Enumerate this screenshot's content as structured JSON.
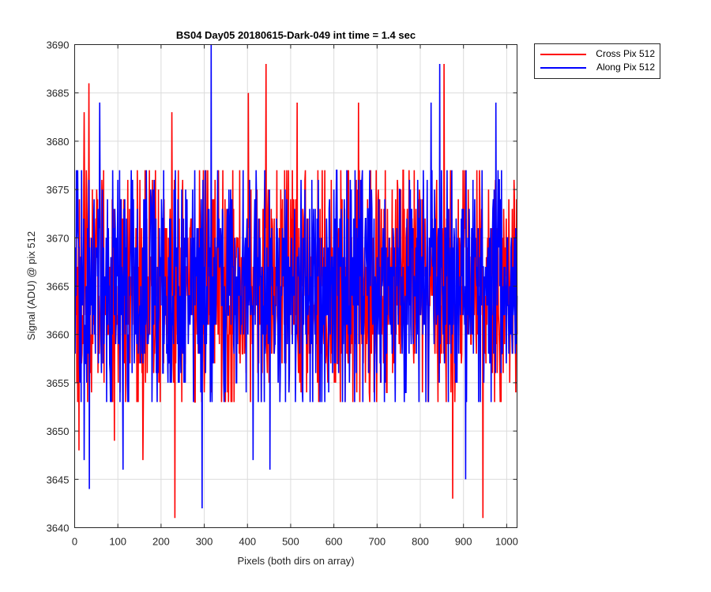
{
  "chart_data": {
    "type": "line",
    "title": "BS04 Day05 20180615-Dark-049 int time = 1.4 sec",
    "xlabel": "Pixels (both dirs on array)",
    "ylabel": "Signal (ADU) @ pix 512",
    "xlim": [
      0,
      1024
    ],
    "ylim": [
      3640,
      3690
    ],
    "xticks": [
      0,
      100,
      200,
      300,
      400,
      500,
      600,
      700,
      800,
      900,
      1000
    ],
    "yticks": [
      3640,
      3645,
      3650,
      3655,
      3660,
      3665,
      3670,
      3675,
      3680,
      3685,
      3690
    ],
    "grid": true,
    "legend_position": "outside-top-right",
    "series": [
      {
        "name": "Cross Pix 512",
        "color": "#ff0000",
        "x_range": [
          1,
          1024
        ],
        "mean": 3665,
        "stddev": 6.5,
        "min": 3641,
        "max": 3688,
        "extremes": [
          {
            "x": 10,
            "y": 3648
          },
          {
            "x": 22,
            "y": 3683
          },
          {
            "x": 33,
            "y": 3686
          },
          {
            "x": 92,
            "y": 3649
          },
          {
            "x": 158,
            "y": 3647
          },
          {
            "x": 225,
            "y": 3683
          },
          {
            "x": 232,
            "y": 3641
          },
          {
            "x": 402,
            "y": 3685
          },
          {
            "x": 443,
            "y": 3688
          },
          {
            "x": 515,
            "y": 3684
          },
          {
            "x": 657,
            "y": 3684
          },
          {
            "x": 855,
            "y": 3688
          },
          {
            "x": 875,
            "y": 3643
          },
          {
            "x": 945,
            "y": 3641
          }
        ]
      },
      {
        "name": "Along Pix 512",
        "color": "#0000ff",
        "x_range": [
          1,
          1024
        ],
        "mean": 3665,
        "stddev": 6.3,
        "min": 3642,
        "max": 3690,
        "extremes": [
          {
            "x": 22,
            "y": 3647
          },
          {
            "x": 34,
            "y": 3644
          },
          {
            "x": 58,
            "y": 3684
          },
          {
            "x": 112,
            "y": 3646
          },
          {
            "x": 295,
            "y": 3642
          },
          {
            "x": 316,
            "y": 3690
          },
          {
            "x": 413,
            "y": 3647
          },
          {
            "x": 452,
            "y": 3646
          },
          {
            "x": 825,
            "y": 3684
          },
          {
            "x": 845,
            "y": 3688
          },
          {
            "x": 905,
            "y": 3645
          },
          {
            "x": 975,
            "y": 3684
          }
        ]
      }
    ]
  }
}
